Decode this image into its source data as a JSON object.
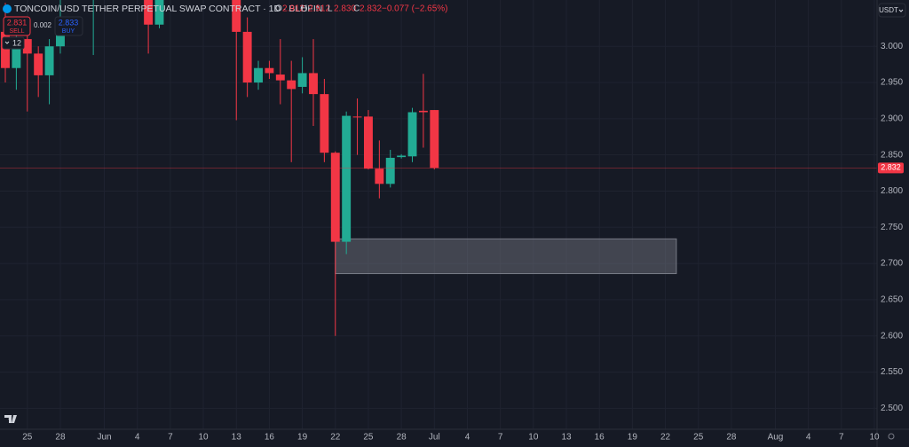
{
  "header": {
    "title": "TONCOIN/USD TETHER PERPETUAL SWAP CONTRACT · 1D · BLOFIN",
    "open_key": "O",
    "open": "2.912",
    "high_key": "H",
    "high": "2.912",
    "low_key": "L",
    "low": "2.830",
    "close_key": "C",
    "close": "2.832",
    "change": "−0.077 (−2.65%)"
  },
  "trade": {
    "sell_price": "2.831",
    "sell": "SELL",
    "spread": "0.002",
    "buy_price": "2.833",
    "buy": "BUY",
    "quantity": "12"
  },
  "currency": "USDT",
  "chart_data": {
    "type": "candlestick",
    "x": [
      "May 23",
      "May 24",
      "May 25",
      "May 26",
      "May 27",
      "May 28",
      "May 31",
      "Jun 5",
      "Jun 6",
      "Jun 13",
      "Jun 14",
      "Jun 15",
      "Jun 16",
      "Jun 17",
      "Jun 18",
      "Jun 19",
      "Jun 20",
      "Jun 21",
      "Jun 22",
      "Jun 23",
      "Jun 24",
      "Jun 25",
      "Jun 26",
      "Jun 27",
      "Jun 28",
      "Jun 29",
      "Jun 30",
      "Jul 1"
    ],
    "open": [
      3.02,
      2.97,
      3.01,
      2.99,
      2.96,
      3.0,
      3.08,
      3.09,
      3.03,
      3.08,
      3.02,
      2.95,
      2.97,
      2.961,
      2.953,
      2.944,
      2.963,
      2.934,
      2.853,
      2.73,
      2.903,
      2.903,
      2.831,
      2.81,
      2.847,
      2.848,
      2.911,
      2.912
    ],
    "high": [
      3.06,
      3.04,
      3.03,
      3.0,
      3.01,
      3.07,
      3.12,
      3.1,
      3.1,
      3.1,
      3.04,
      2.98,
      2.98,
      3.01,
      2.98,
      2.985,
      3.01,
      2.955,
      2.855,
      2.91,
      2.928,
      2.912,
      2.87,
      2.857,
      2.851,
      2.915,
      2.962,
      2.912
    ],
    "low": [
      2.95,
      2.94,
      2.91,
      2.93,
      2.92,
      2.99,
      2.988,
      2.99,
      3.025,
      2.898,
      2.93,
      2.94,
      2.955,
      2.92,
      2.84,
      2.935,
      2.89,
      2.84,
      2.6,
      2.713,
      2.85,
      2.83,
      2.79,
      2.805,
      2.845,
      2.84,
      2.86,
      2.83
    ],
    "close": [
      2.97,
      3.01,
      2.99,
      2.96,
      3.0,
      3.04,
      3.1,
      3.03,
      3.09,
      3.02,
      2.95,
      2.97,
      2.963,
      2.953,
      2.941,
      2.963,
      2.934,
      2.853,
      2.73,
      2.904,
      2.902,
      2.831,
      2.81,
      2.846,
      2.849,
      2.909,
      2.909,
      2.832
    ],
    "up_color": "#22ab94",
    "down_color": "#f23645",
    "zone": {
      "x": [
        "Jun 22",
        "Jul 23"
      ],
      "y": [
        2.686,
        2.734
      ],
      "color": "#787b86"
    },
    "xlim": [
      "May 23",
      "Aug 10"
    ],
    "ylim": [
      2.471,
      3.064
    ],
    "yticks": [
      {
        "value": 2.5,
        "label": "2.500"
      },
      {
        "value": 2.55,
        "label": "2.550"
      },
      {
        "value": 2.6,
        "label": "2.600"
      },
      {
        "value": 2.65,
        "label": "2.650"
      },
      {
        "value": 2.7,
        "label": "2.700"
      },
      {
        "value": 2.75,
        "label": "2.750"
      },
      {
        "value": 2.8,
        "label": "2.800"
      },
      {
        "value": 2.85,
        "label": "2.850"
      },
      {
        "value": 2.9,
        "label": "2.900"
      },
      {
        "value": 2.95,
        "label": "2.950"
      },
      {
        "value": 3.0,
        "label": "3.000"
      }
    ],
    "xticks": [
      {
        "value": "May 25",
        "label": "25"
      },
      {
        "value": "May 28",
        "label": "28"
      },
      {
        "value": "Jun 1",
        "label": "Jun"
      },
      {
        "value": "Jun 4",
        "label": "4"
      },
      {
        "value": "Jun 7",
        "label": "7"
      },
      {
        "value": "Jun 10",
        "label": "10"
      },
      {
        "value": "Jun 13",
        "label": "13"
      },
      {
        "value": "Jun 16",
        "label": "16"
      },
      {
        "value": "Jun 19",
        "label": "19"
      },
      {
        "value": "Jun 22",
        "label": "22"
      },
      {
        "value": "Jun 25",
        "label": "25"
      },
      {
        "value": "Jun 28",
        "label": "28"
      },
      {
        "value": "Jul 1",
        "label": "Jul"
      },
      {
        "value": "Jul 4",
        "label": "4"
      },
      {
        "value": "Jul 7",
        "label": "7"
      },
      {
        "value": "Jul 10",
        "label": "10"
      },
      {
        "value": "Jul 13",
        "label": "13"
      },
      {
        "value": "Jul 16",
        "label": "16"
      },
      {
        "value": "Jul 19",
        "label": "19"
      },
      {
        "value": "Jul 22",
        "label": "22"
      },
      {
        "value": "Jul 25",
        "label": "25"
      },
      {
        "value": "Jul 28",
        "label": "28"
      },
      {
        "value": "Aug 1",
        "label": "Aug"
      },
      {
        "value": "Aug 4",
        "label": "4"
      },
      {
        "value": "Aug 7",
        "label": "7"
      },
      {
        "value": "Aug 10",
        "label": "10"
      }
    ],
    "grid": true
  }
}
